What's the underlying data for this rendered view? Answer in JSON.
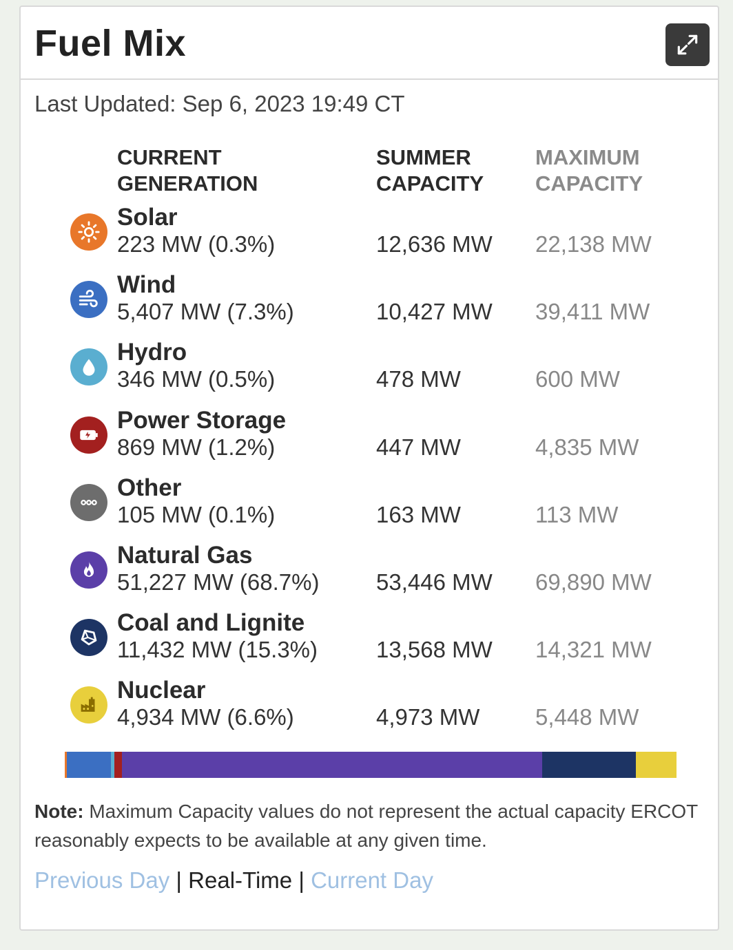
{
  "widget": {
    "title": "Fuel Mix",
    "last_updated": "Last Updated: Sep 6, 2023 19:49 CT",
    "expand_icon": "expand-icon"
  },
  "columns": {
    "current": "CURRENT\nGENERATION",
    "summer": "SUMMER\nCAPACITY",
    "maximum": "MAXIMUM\nCAPACITY"
  },
  "fuels": [
    {
      "name": "Solar",
      "gen": "223 MW (0.3%)",
      "summer": "12,636 MW",
      "max": "22,138 MW",
      "icon": "sun-icon",
      "color": "#e8772a",
      "share": 0.3
    },
    {
      "name": "Wind",
      "gen": "5,407 MW (7.3%)",
      "summer": "10,427 MW",
      "max": "39,411 MW",
      "icon": "wind-icon",
      "color": "#3b6fc2",
      "share": 7.3
    },
    {
      "name": "Hydro",
      "gen": "346 MW (0.5%)",
      "summer": "478 MW",
      "max": "600 MW",
      "icon": "water-drop-icon",
      "color": "#5aaed0",
      "share": 0.5
    },
    {
      "name": "Power Storage",
      "gen": "869 MW (1.2%)",
      "summer": "447 MW",
      "max": "4,835 MW",
      "icon": "battery-icon",
      "color": "#a3201f",
      "share": 1.2
    },
    {
      "name": "Other",
      "gen": "105 MW (0.1%)",
      "summer": "163 MW",
      "max": "113 MW",
      "icon": "more-icon",
      "color": "#6d6d6d",
      "share": 0.1
    },
    {
      "name": "Natural Gas",
      "gen": "51,227 MW (68.7%)",
      "summer": "53,446 MW",
      "max": "69,890 MW",
      "icon": "flame-icon",
      "color": "#5b3fa8",
      "share": 68.7
    },
    {
      "name": "Coal and Lignite",
      "gen": "11,432 MW (15.3%)",
      "summer": "13,568 MW",
      "max": "14,321 MW",
      "icon": "coal-icon",
      "color": "#1d3464",
      "share": 15.3
    },
    {
      "name": "Nuclear",
      "gen": "4,934 MW (6.6%)",
      "summer": "4,973 MW",
      "max": "5,448 MW",
      "icon": "factory-icon",
      "color": "#e8cf3c",
      "share": 6.6
    }
  ],
  "note": {
    "label": "Note:",
    "text": " Maximum Capacity values do not represent the actual capacity ERCOT reasonably expects to be available at any given time."
  },
  "links": {
    "previous": "Previous Day",
    "realtime": "Real-Time",
    "current": "Current Day",
    "separator": "|"
  }
}
